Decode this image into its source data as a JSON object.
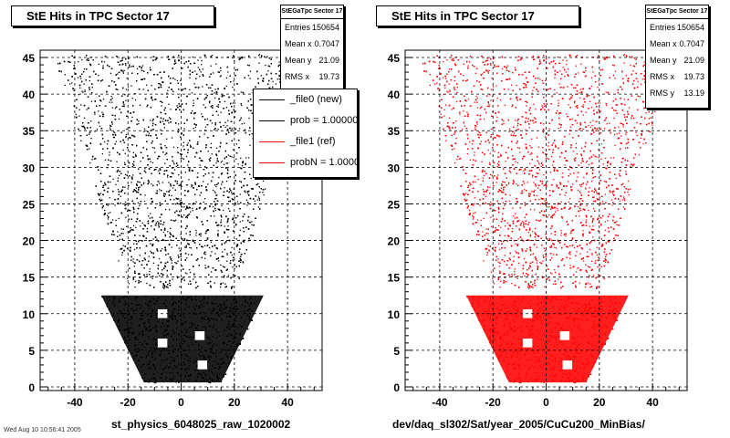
{
  "chart_data": [
    {
      "type": "scatter",
      "title": "StE Hits in TPC Sector 17",
      "xlabel": "st_physics_6048025_raw_1020002",
      "xlim": [
        -53,
        53
      ],
      "ylim": [
        -0.5,
        46
      ],
      "xticks": [
        -40,
        -20,
        0,
        20,
        40
      ],
      "yticks": [
        0,
        5,
        10,
        15,
        20,
        25,
        30,
        35,
        40,
        45
      ],
      "grid": true,
      "marker_color": "#000000",
      "stats": {
        "header": "StEGaTpc Sector 17",
        "rows": [
          {
            "label": "Entries",
            "value": "150654"
          },
          {
            "label": "Mean x",
            "value": "0.7047"
          },
          {
            "label": "Mean y",
            "value": "21.09"
          },
          {
            "label": "RMS x",
            "value": "19.73"
          }
        ]
      },
      "legend": {
        "placement": "top-right",
        "entries": [
          {
            "label": "_file0 (new)",
            "color": "#000000"
          },
          {
            "label": "prob = 1.000000",
            "color": "#000000"
          },
          {
            "label": "_file1 (ref)",
            "color": "#ff0000"
          },
          {
            "label": "probN = 1.000000",
            "color": "#ff0000"
          }
        ]
      }
    },
    {
      "type": "scatter",
      "title": "StE Hits in TPC Sector 17",
      "xlabel": "dev/daq_sl302/Sat/year_2005/CuCu200_MinBias/",
      "xlim": [
        -53,
        53
      ],
      "ylim": [
        -0.5,
        46
      ],
      "xticks": [
        -40,
        -20,
        0,
        20,
        40
      ],
      "yticks": [
        0,
        5,
        10,
        15,
        20,
        25,
        30,
        35,
        40,
        45
      ],
      "grid": true,
      "marker_color": "#ff0000",
      "stats": {
        "header": "StEGaTpc Sector 17",
        "rows": [
          {
            "label": "Entries",
            "value": "150654"
          },
          {
            "label": "Mean x",
            "value": "0.7047"
          },
          {
            "label": "Mean y",
            "value": "21.09"
          },
          {
            "label": "RMS x",
            "value": "19.73"
          },
          {
            "label": "RMS y",
            "value": "13.19"
          }
        ]
      }
    }
  ],
  "footnote": "Wed Aug 10 10:56:41 2005"
}
